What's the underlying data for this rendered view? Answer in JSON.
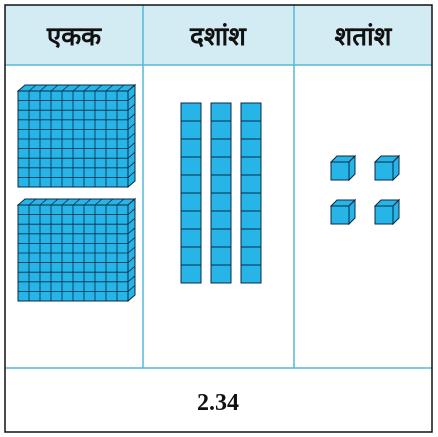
{
  "table": {
    "header": [
      "एकक",
      "दशांश",
      "शतांश"
    ],
    "footer": "2.34"
  }
}
